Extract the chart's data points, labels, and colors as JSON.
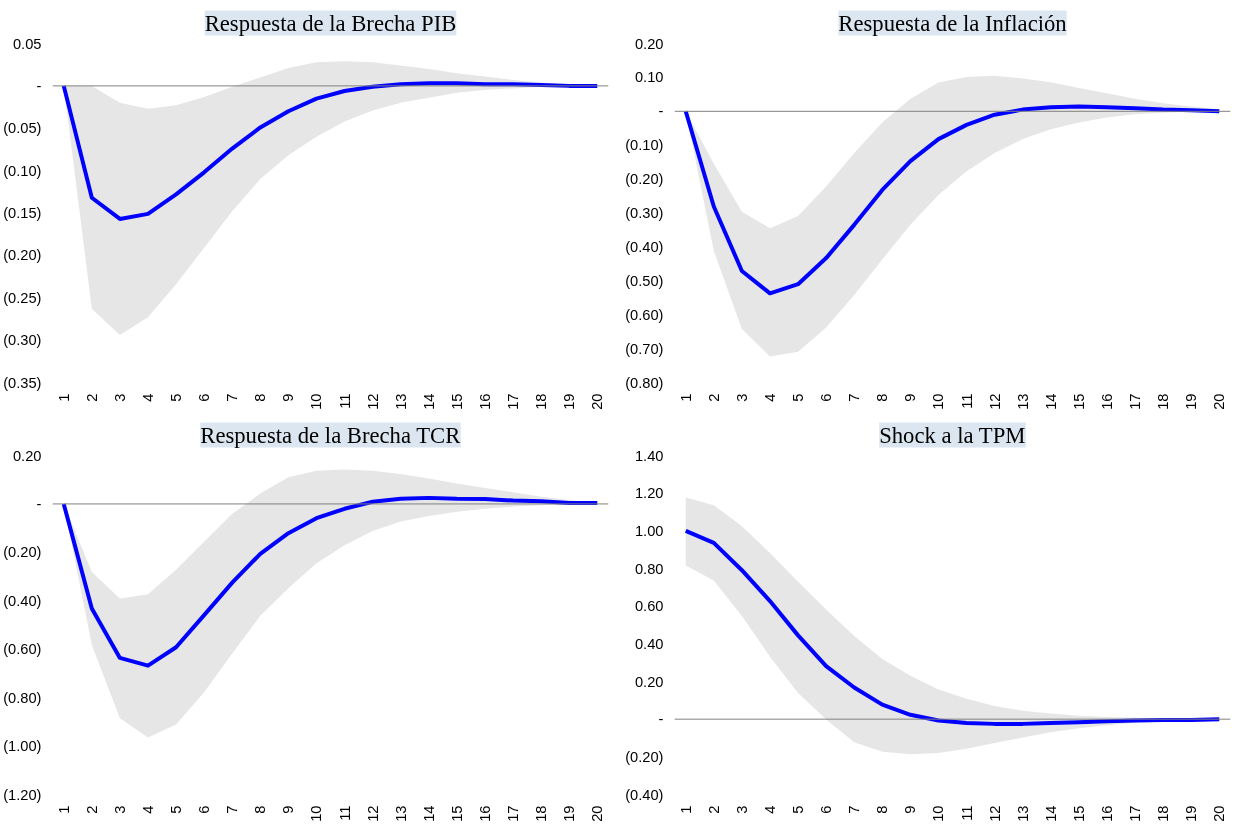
{
  "chart_data": [
    {
      "type": "line",
      "title": "Respuesta de la Brecha PIB",
      "categories": [
        "1",
        "2",
        "3",
        "4",
        "5",
        "6",
        "7",
        "8",
        "9",
        "10",
        "11",
        "12",
        "13",
        "14",
        "15",
        "16",
        "17",
        "18",
        "19",
        "20"
      ],
      "series": [
        {
          "color": "#0000ff",
          "values": [
            0,
            -0.132,
            -0.157,
            -0.151,
            -0.128,
            -0.102,
            -0.074,
            -0.049,
            -0.03,
            -0.015,
            -0.006,
            -0.001,
            0.002,
            0.003,
            0.003,
            0.002,
            0.002,
            0.001,
            0,
            0
          ],
          "lower": [
            0,
            -0.263,
            -0.294,
            -0.273,
            -0.234,
            -0.191,
            -0.148,
            -0.11,
            -0.082,
            -0.06,
            -0.042,
            -0.029,
            -0.02,
            -0.014,
            -0.008,
            -0.005,
            -0.003,
            -0.001,
            -0.001,
            0
          ],
          "upper": [
            0,
            0,
            -0.02,
            -0.027,
            -0.023,
            -0.013,
            -0.001,
            0.01,
            0.021,
            0.028,
            0.029,
            0.028,
            0.024,
            0.02,
            0.015,
            0.011,
            0.007,
            0.004,
            0.002,
            0.001
          ]
        }
      ],
      "ylim": [
        -0.35,
        0.05
      ],
      "yticks": [
        {
          "value": 0.05,
          "label": "0.05"
        },
        {
          "value": 0,
          "label": "-"
        },
        {
          "value": -0.05,
          "label": "(0.05)"
        },
        {
          "value": -0.1,
          "label": "(0.10)"
        },
        {
          "value": -0.15,
          "label": "(0.15)"
        },
        {
          "value": -0.2,
          "label": "(0.20)"
        },
        {
          "value": -0.25,
          "label": "(0.25)"
        },
        {
          "value": -0.3,
          "label": "(0.30)"
        },
        {
          "value": -0.35,
          "label": "(0.35)"
        }
      ],
      "ref_lines": [
        {
          "axis": "y",
          "value": 0,
          "color": "#808080"
        }
      ]
    },
    {
      "type": "line",
      "title": "Respuesta de la Inflación",
      "categories": [
        "1",
        "2",
        "3",
        "4",
        "5",
        "6",
        "7",
        "8",
        "9",
        "10",
        "11",
        "12",
        "13",
        "14",
        "15",
        "16",
        "17",
        "18",
        "19",
        "20"
      ],
      "series": [
        {
          "color": "#0000ff",
          "values": [
            0,
            -0.281,
            -0.471,
            -0.537,
            -0.51,
            -0.433,
            -0.335,
            -0.232,
            -0.147,
            -0.082,
            -0.04,
            -0.01,
            0.005,
            0.012,
            0.014,
            0.012,
            0.009,
            0.005,
            0.003,
            0
          ],
          "lower": [
            0,
            -0.412,
            -0.642,
            -0.723,
            -0.709,
            -0.638,
            -0.542,
            -0.437,
            -0.335,
            -0.247,
            -0.177,
            -0.123,
            -0.082,
            -0.053,
            -0.033,
            -0.018,
            -0.009,
            -0.004,
            -0.001,
            0
          ],
          "upper": [
            0,
            -0.155,
            -0.296,
            -0.345,
            -0.309,
            -0.222,
            -0.123,
            -0.033,
            0.037,
            0.085,
            0.101,
            0.105,
            0.097,
            0.086,
            0.069,
            0.053,
            0.037,
            0.024,
            0.014,
            0.005
          ]
        }
      ],
      "ylim": [
        -0.8,
        0.2
      ],
      "yticks": [
        {
          "value": 0.2,
          "label": "0.20"
        },
        {
          "value": 0.1,
          "label": "0.10"
        },
        {
          "value": 0,
          "label": "-"
        },
        {
          "value": -0.1,
          "label": "(0.10)"
        },
        {
          "value": -0.2,
          "label": "(0.20)"
        },
        {
          "value": -0.3,
          "label": "(0.30)"
        },
        {
          "value": -0.4,
          "label": "(0.40)"
        },
        {
          "value": -0.5,
          "label": "(0.50)"
        },
        {
          "value": -0.6,
          "label": "(0.60)"
        },
        {
          "value": -0.7,
          "label": "(0.70)"
        },
        {
          "value": -0.8,
          "label": "(0.80)"
        }
      ],
      "ref_lines": [
        {
          "axis": "y",
          "value": 0,
          "color": "#808080"
        }
      ]
    },
    {
      "type": "line",
      "title": "Respuesta de la Brecha TCR",
      "categories": [
        "1",
        "2",
        "3",
        "4",
        "5",
        "6",
        "7",
        "8",
        "9",
        "10",
        "11",
        "12",
        "13",
        "14",
        "15",
        "16",
        "17",
        "18",
        "19",
        "20"
      ],
      "series": [
        {
          "color": "#0000ff",
          "values": [
            0,
            -0.432,
            -0.636,
            -0.668,
            -0.592,
            -0.459,
            -0.325,
            -0.206,
            -0.121,
            -0.059,
            -0.02,
            0.009,
            0.021,
            0.025,
            0.021,
            0.02,
            0.014,
            0.011,
            0.004,
            0.004
          ],
          "lower": [
            0,
            -0.583,
            -0.885,
            -0.965,
            -0.911,
            -0.778,
            -0.618,
            -0.462,
            -0.348,
            -0.245,
            -0.171,
            -0.112,
            -0.073,
            -0.05,
            -0.032,
            -0.02,
            -0.011,
            -0.005,
            -0.002,
            0
          ],
          "upper": [
            0,
            -0.281,
            -0.391,
            -0.373,
            -0.272,
            -0.156,
            -0.041,
            0.043,
            0.11,
            0.137,
            0.142,
            0.137,
            0.124,
            0.105,
            0.084,
            0.066,
            0.048,
            0.03,
            0.016,
            0.004
          ]
        }
      ],
      "ylim": [
        -1.2,
        0.2
      ],
      "yticks": [
        {
          "value": 0.2,
          "label": "0.20"
        },
        {
          "value": 0,
          "label": "-"
        },
        {
          "value": -0.2,
          "label": "(0.20)"
        },
        {
          "value": -0.4,
          "label": "(0.40)"
        },
        {
          "value": -0.6,
          "label": "(0.60)"
        },
        {
          "value": -0.8,
          "label": "(0.80)"
        },
        {
          "value": -1.0,
          "label": "(1.00)"
        },
        {
          "value": -1.2,
          "label": "(1.20)"
        }
      ],
      "ref_lines": [
        {
          "axis": "y",
          "value": 0,
          "color": "#808080"
        }
      ]
    },
    {
      "type": "line",
      "title": "Shock a la TPM",
      "categories": [
        "1",
        "2",
        "3",
        "4",
        "5",
        "6",
        "7",
        "8",
        "9",
        "10",
        "11",
        "12",
        "13",
        "14",
        "15",
        "16",
        "17",
        "18",
        "19",
        "20"
      ],
      "series": [
        {
          "color": "#0000ff",
          "values": [
            1.0,
            0.936,
            0.791,
            0.627,
            0.445,
            0.282,
            0.168,
            0.077,
            0.023,
            -0.007,
            -0.02,
            -0.025,
            -0.025,
            -0.02,
            -0.016,
            -0.011,
            -0.007,
            -0.005,
            -0.005,
            0
          ],
          "lower": [
            0.816,
            0.736,
            0.548,
            0.332,
            0.139,
            -0.002,
            -0.123,
            -0.173,
            -0.186,
            -0.18,
            -0.157,
            -0.127,
            -0.098,
            -0.07,
            -0.048,
            -0.032,
            -0.02,
            -0.011,
            -0.007,
            -0.002
          ],
          "upper": [
            1.177,
            1.136,
            1.025,
            0.882,
            0.73,
            0.582,
            0.441,
            0.32,
            0.23,
            0.157,
            0.109,
            0.07,
            0.045,
            0.03,
            0.018,
            0.011,
            0.007,
            0.002,
            0,
            0
          ]
        }
      ],
      "ylim": [
        -0.4,
        1.4
      ],
      "yticks": [
        {
          "value": 1.4,
          "label": "1.40"
        },
        {
          "value": 1.2,
          "label": "1.20"
        },
        {
          "value": 1.0,
          "label": "1.00"
        },
        {
          "value": 0.8,
          "label": "0.80"
        },
        {
          "value": 0.6,
          "label": "0.60"
        },
        {
          "value": 0.4,
          "label": "0.40"
        },
        {
          "value": 0.2,
          "label": "0.20"
        },
        {
          "value": 0,
          "label": "-"
        },
        {
          "value": -0.2,
          "label": "(0.20)"
        },
        {
          "value": -0.4,
          "label": "(0.40)"
        }
      ],
      "ref_lines": [
        {
          "axis": "y",
          "value": 0,
          "color": "#808080"
        }
      ]
    }
  ]
}
